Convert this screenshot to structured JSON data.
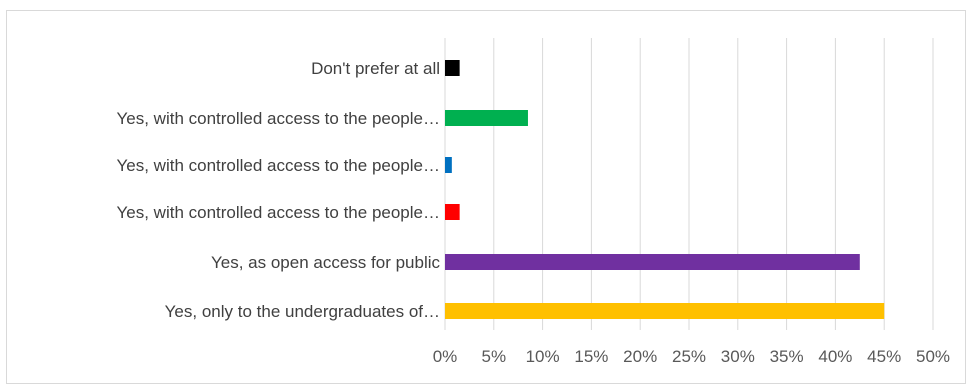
{
  "chart_data": {
    "type": "bar",
    "orientation": "horizontal",
    "categories": [
      "Don't prefer at all",
      "Yes, with controlled access to the people…",
      "Yes, with controlled access to the people…",
      "Yes, with controlled access to the people…",
      "Yes, as open access for public",
      "Yes, only to the undergraduates of…"
    ],
    "values": [
      1.5,
      8.5,
      0.7,
      1.5,
      42.5,
      45.0
    ],
    "colors": [
      "#000000",
      "#00b050",
      "#0070c0",
      "#ff0000",
      "#7030a0",
      "#ffc000"
    ],
    "xlim": [
      0,
      50
    ],
    "ticks": [
      "0%",
      "5%",
      "10%",
      "15%",
      "20%",
      "25%",
      "30%",
      "35%",
      "40%",
      "45%",
      "50%"
    ],
    "grid": true,
    "title": "",
    "xlabel": "",
    "ylabel": ""
  }
}
